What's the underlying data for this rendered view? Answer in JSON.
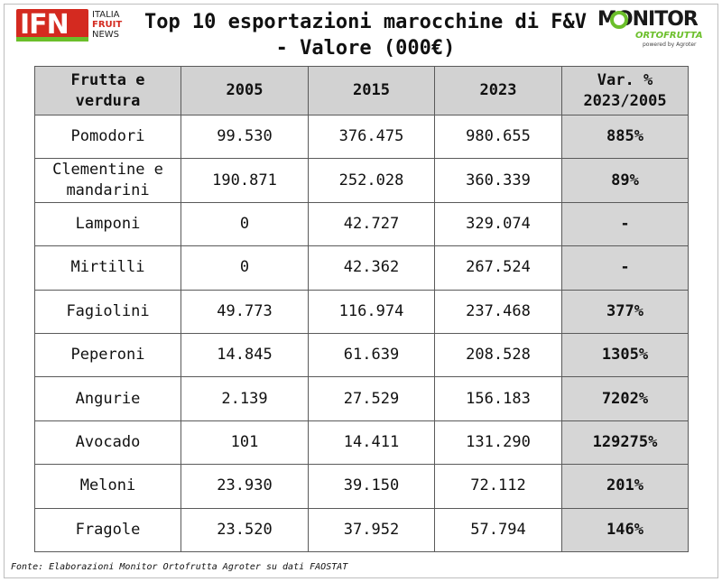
{
  "header": {
    "logo_left": {
      "mark": "IFN",
      "line1": "ITALIA",
      "line2": "FRUIT",
      "line3": "NEWS"
    },
    "title_line1": "Top 10 esportazioni marocchine di F&V",
    "title_line2": "- Valore (000€)",
    "logo_right": {
      "mark": "MONITOR",
      "sub": "ORTOFRUTTA",
      "powered": "powered by Agroter"
    }
  },
  "table": {
    "columns": [
      "Frutta e verdura",
      "2005",
      "2015",
      "2023",
      "Var. % 2023/2005"
    ],
    "rows": [
      {
        "product": "Pomodori",
        "y2005": "99.530",
        "y2015": "376.475",
        "y2023": "980.655",
        "var": "885%"
      },
      {
        "product": "Clementine e mandarini",
        "y2005": "190.871",
        "y2015": "252.028",
        "y2023": "360.339",
        "var": "89%"
      },
      {
        "product": "Lamponi",
        "y2005": "0",
        "y2015": "42.727",
        "y2023": "329.074",
        "var": "-"
      },
      {
        "product": "Mirtilli",
        "y2005": "0",
        "y2015": "42.362",
        "y2023": "267.524",
        "var": "-"
      },
      {
        "product": "Fagiolini",
        "y2005": "49.773",
        "y2015": "116.974",
        "y2023": "237.468",
        "var": "377%"
      },
      {
        "product": "Peperoni",
        "y2005": "14.845",
        "y2015": "61.639",
        "y2023": "208.528",
        "var": "1305%"
      },
      {
        "product": "Angurie",
        "y2005": "2.139",
        "y2015": "27.529",
        "y2023": "156.183",
        "var": "7202%"
      },
      {
        "product": "Avocado",
        "y2005": "101",
        "y2015": "14.411",
        "y2023": "131.290",
        "var": "129275%"
      },
      {
        "product": "Meloni",
        "y2005": "23.930",
        "y2015": "39.150",
        "y2023": "72.112",
        "var": "201%"
      },
      {
        "product": "Fragole",
        "y2005": "23.520",
        "y2015": "37.952",
        "y2023": "57.794",
        "var": "146%"
      }
    ]
  },
  "footer": {
    "source": "Fonte: Elaborazioni Monitor Ortofrutta Agroter su dati FAOSTAT"
  },
  "colors": {
    "ifn_red": "#d42a20",
    "accent_green": "#6bbf2a",
    "header_gray": "#d2d2d2"
  }
}
